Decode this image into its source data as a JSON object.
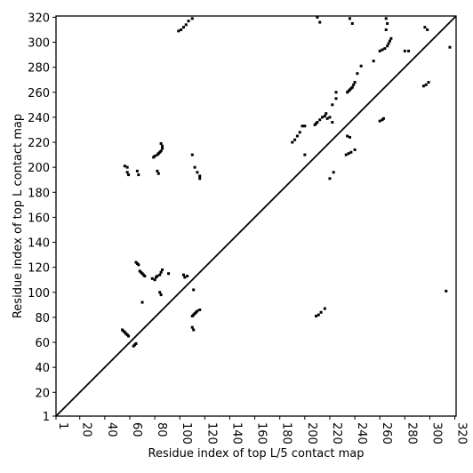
{
  "chart_data": {
    "type": "scatter",
    "xlabel": "Residue index of top L/5 contact map",
    "ylabel": "Residue index of top L contact map",
    "xlim": [
      1,
      321
    ],
    "ylim": [
      1,
      321
    ],
    "xticks": [
      1,
      20,
      40,
      60,
      80,
      100,
      120,
      140,
      160,
      180,
      200,
      220,
      240,
      260,
      280,
      300,
      320
    ],
    "yticks": [
      1,
      20,
      40,
      60,
      80,
      100,
      120,
      140,
      160,
      180,
      200,
      220,
      240,
      260,
      280,
      300,
      320
    ],
    "diagonal": {
      "x": [
        1,
        321
      ],
      "y": [
        1,
        321
      ],
      "color": "#000000"
    },
    "series": [
      {
        "color": "#000000",
        "x": [
          54,
          55,
          56,
          57,
          58,
          59,
          63,
          64,
          65,
          65,
          66,
          67,
          68,
          69,
          70,
          71,
          72,
          78,
          80,
          81,
          82,
          84,
          85,
          86,
          84,
          85,
          70,
          79,
          80,
          82,
          83,
          84,
          85,
          86,
          86,
          85,
          82,
          83,
          56,
          58,
          58,
          59,
          66,
          67,
          99,
          101,
          103,
          105,
          107,
          110,
          103,
          104,
          106,
          110,
          111,
          112,
          113,
          114,
          116,
          110,
          111,
          111,
          110,
          112,
          114,
          116,
          116,
          91,
          234,
          235,
          236,
          237,
          238,
          239,
          240,
          242,
          222,
          225,
          225,
          260,
          262,
          264,
          266,
          267,
          268,
          269,
          265,
          280,
          283,
          295,
          297,
          299,
          296,
          298,
          208,
          209,
          210,
          212,
          214,
          216,
          217,
          218,
          220,
          222,
          190,
          192,
          194,
          196,
          198,
          200,
          200,
          211,
          213,
          216,
          209,
          220,
          223,
          233,
          235,
          237,
          240,
          234,
          236,
          260,
          262,
          263,
          236,
          238,
          210,
          212,
          265,
          266,
          313,
          316,
          245,
          255
        ],
        "values": [
          70,
          69,
          68,
          67,
          66,
          65,
          57,
          58,
          59,
          124,
          123,
          122,
          117,
          116,
          115,
          114,
          113,
          111,
          110,
          112,
          113,
          114,
          116,
          118,
          100,
          98,
          92,
          208,
          209,
          210,
          211,
          212,
          213,
          215,
          217,
          219,
          197,
          195,
          201,
          200,
          196,
          194,
          197,
          194,
          309,
          310,
          312,
          314,
          317,
          319,
          114,
          112,
          113,
          81,
          82,
          83,
          84,
          85,
          86,
          72,
          70,
          102,
          210,
          200,
          196,
          193,
          191,
          115,
          260,
          261,
          262,
          263,
          264,
          266,
          268,
          275,
          250,
          255,
          260,
          293,
          294,
          295,
          297,
          299,
          301,
          303,
          310,
          293,
          293,
          265,
          266,
          268,
          312,
          310,
          234,
          235,
          236,
          238,
          240,
          241,
          243,
          239,
          240,
          236,
          220,
          222,
          225,
          228,
          233,
          233,
          210,
          82,
          84,
          87,
          81,
          191,
          196,
          210,
          211,
          212,
          214,
          225,
          224,
          237,
          238,
          239,
          319,
          315,
          320,
          316,
          319,
          315,
          101,
          296,
          281,
          285
        ]
      }
    ]
  }
}
